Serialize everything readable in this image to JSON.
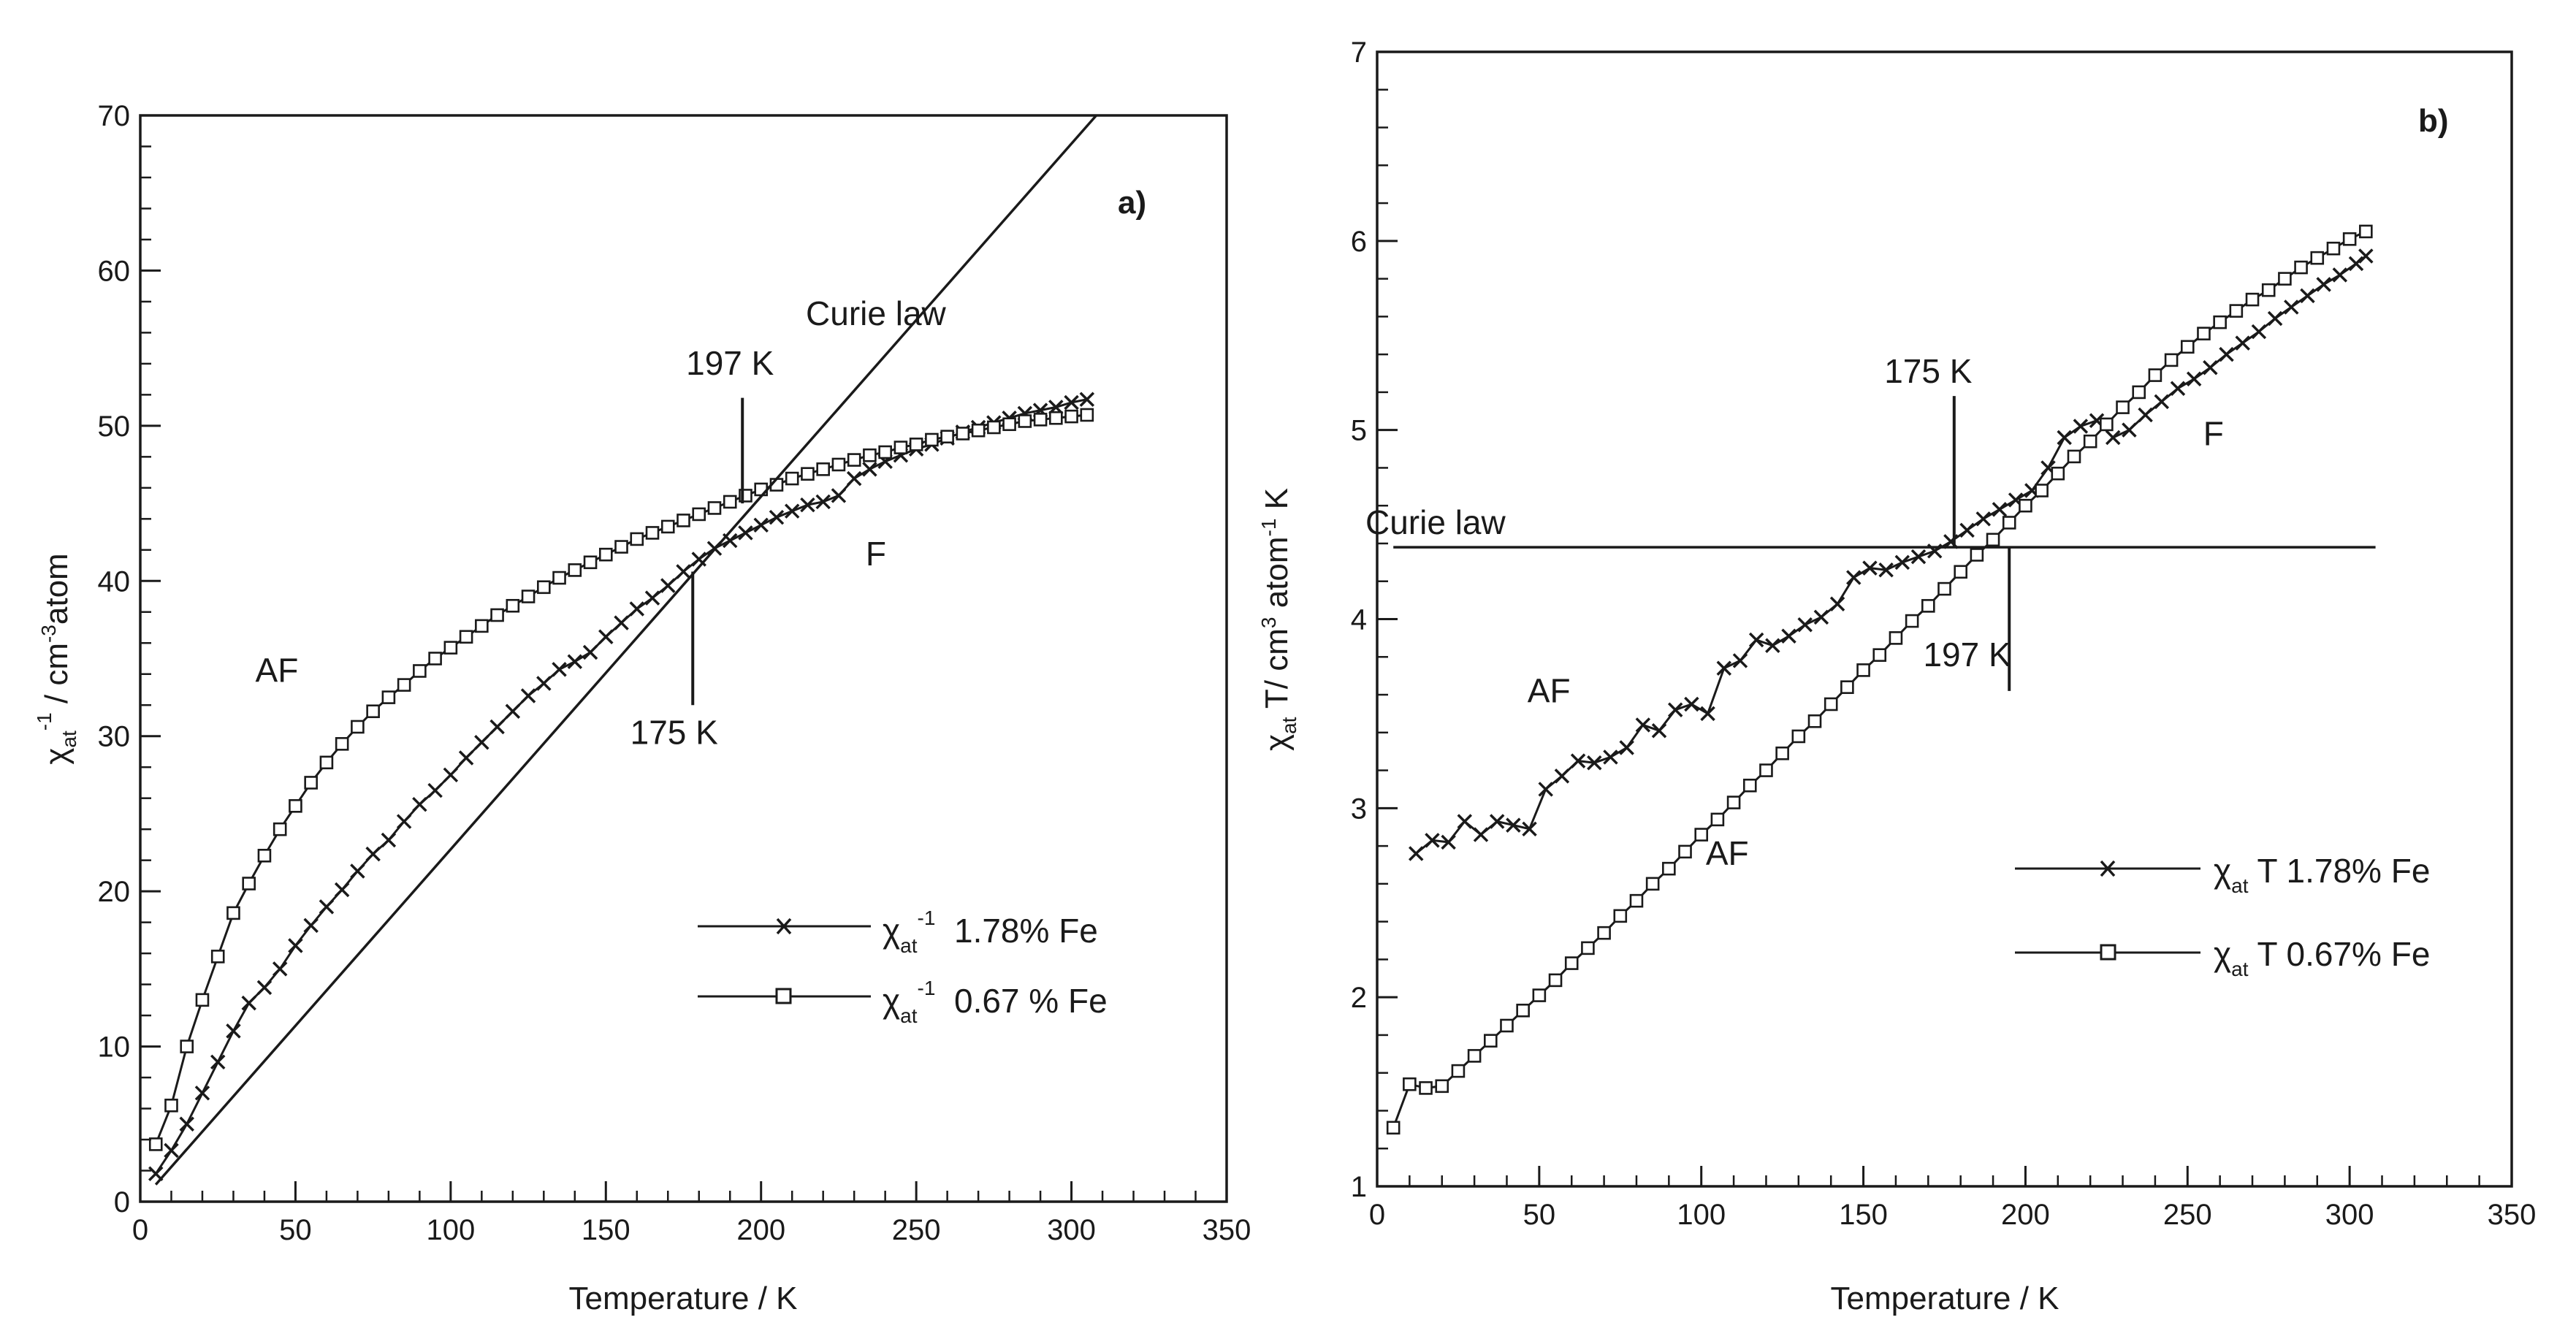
{
  "chart_data": [
    {
      "type": "line",
      "panel_label": "a)",
      "title": "",
      "xlabel": "Temperature / K",
      "ylabel": "χat-1 / cm-3atom",
      "ylabel_parts": {
        "chi": "χ",
        "sub": "at",
        "sup": "-1",
        "rest": " / cm",
        "sup2": "-3",
        "rest2": "atom"
      },
      "xlim": [
        0,
        350
      ],
      "ylim": [
        0,
        70
      ],
      "xticks": [
        0,
        50,
        100,
        150,
        200,
        250,
        300,
        350
      ],
      "yticks": [
        0,
        10,
        20,
        30,
        40,
        50,
        60,
        70
      ],
      "grid": false,
      "legend_position": "bottom-right",
      "series": [
        {
          "name": "χat-1 1.78% Fe",
          "legend_parts": {
            "chi": "χ",
            "sub": "at",
            "sup": "-1",
            "rest": "  1.78% Fe"
          },
          "marker": "x",
          "x": [
            5,
            10,
            15,
            20,
            25,
            30,
            35,
            40,
            45,
            50,
            55,
            60,
            65,
            70,
            75,
            80,
            85,
            90,
            95,
            100,
            105,
            110,
            115,
            120,
            125,
            130,
            135,
            140,
            145,
            150,
            155,
            160,
            165,
            170,
            175,
            180,
            185,
            190,
            195,
            200,
            205,
            210,
            215,
            220,
            225,
            230,
            235,
            240,
            245,
            250,
            255,
            260,
            265,
            270,
            275,
            280,
            285,
            290,
            295,
            300,
            305
          ],
          "y": [
            1.8,
            3.3,
            5.0,
            7.0,
            9.0,
            11.0,
            12.8,
            13.8,
            15.0,
            16.5,
            17.8,
            19.0,
            20.1,
            21.3,
            22.4,
            23.3,
            24.5,
            25.6,
            26.5,
            27.5,
            28.6,
            29.6,
            30.6,
            31.6,
            32.6,
            33.4,
            34.3,
            34.8,
            35.4,
            36.4,
            37.3,
            38.2,
            38.9,
            39.7,
            40.6,
            41.4,
            42.1,
            42.6,
            43.1,
            43.6,
            44.1,
            44.5,
            44.9,
            45.1,
            45.5,
            46.6,
            47.2,
            47.7,
            48.1,
            48.5,
            48.8,
            49.2,
            49.6,
            49.9,
            50.2,
            50.5,
            50.8,
            51.0,
            51.2,
            51.5,
            51.7
          ]
        },
        {
          "name": "χat-1 0.67 % Fe",
          "legend_parts": {
            "chi": "χ",
            "sub": "at",
            "sup": "-1",
            "rest": "  0.67 % Fe"
          },
          "marker": "square",
          "x": [
            5,
            10,
            15,
            20,
            25,
            30,
            35,
            40,
            45,
            50,
            55,
            60,
            65,
            70,
            75,
            80,
            85,
            90,
            95,
            100,
            105,
            110,
            115,
            120,
            125,
            130,
            135,
            140,
            145,
            150,
            155,
            160,
            165,
            170,
            175,
            180,
            185,
            190,
            195,
            200,
            205,
            210,
            215,
            220,
            225,
            230,
            235,
            240,
            245,
            250,
            255,
            260,
            265,
            270,
            275,
            280,
            285,
            290,
            295,
            300,
            305
          ],
          "y": [
            3.7,
            6.2,
            10.0,
            13.0,
            15.8,
            18.6,
            20.5,
            22.3,
            24.0,
            25.5,
            27.0,
            28.3,
            29.5,
            30.6,
            31.6,
            32.5,
            33.3,
            34.2,
            35.0,
            35.7,
            36.4,
            37.1,
            37.8,
            38.4,
            39.0,
            39.6,
            40.2,
            40.7,
            41.2,
            41.7,
            42.2,
            42.7,
            43.1,
            43.5,
            43.9,
            44.3,
            44.7,
            45.1,
            45.5,
            45.9,
            46.2,
            46.6,
            46.9,
            47.2,
            47.5,
            47.8,
            48.1,
            48.3,
            48.6,
            48.8,
            49.1,
            49.3,
            49.5,
            49.7,
            49.9,
            50.1,
            50.3,
            50.4,
            50.5,
            50.6,
            50.7
          ]
        },
        {
          "name": "Curie law",
          "marker": "none",
          "x": [
            5,
            308
          ],
          "y": [
            1.1,
            70
          ]
        }
      ],
      "annotations": [
        {
          "text": "a)",
          "x": 268,
          "y": 64.5,
          "kind": "panel"
        },
        {
          "text": "Curie law",
          "x": 237,
          "y": 56.5,
          "kind": "label"
        },
        {
          "text": "197 K",
          "x": 190,
          "y": 53.3,
          "kind": "label"
        },
        {
          "text": "175 K",
          "x": 172,
          "y": 29.5,
          "kind": "label"
        },
        {
          "text": "F",
          "x": 237,
          "y": 41.0,
          "kind": "label"
        },
        {
          "text": "AF",
          "x": 44,
          "y": 33.5,
          "kind": "label"
        }
      ],
      "marker_lines": [
        {
          "x": 194,
          "y1": 45.0,
          "y2": 51.8
        },
        {
          "x": 178,
          "y1": 32.0,
          "y2": 40.6
        }
      ]
    },
    {
      "type": "line",
      "panel_label": "b)",
      "title": "",
      "xlabel": "Temperature / K",
      "ylabel": "χat T/ cm3 atom-1 K",
      "ylabel_parts": {
        "chi": "χ",
        "sub": "at",
        "rest": " T/ cm",
        "sup": "3",
        "rest2": " atom",
        "sup2": "-1",
        "rest3": " K"
      },
      "xlim": [
        0,
        350
      ],
      "ylim": [
        1,
        7
      ],
      "xticks": [
        0,
        50,
        100,
        150,
        200,
        250,
        300,
        350
      ],
      "yticks": [
        1,
        2,
        3,
        4,
        5,
        6,
        7
      ],
      "grid": false,
      "legend_position": "middle-right",
      "series": [
        {
          "name": "χat T 1.78% Fe",
          "legend_parts": {
            "chi": "χ",
            "sub": "at",
            "rest": " T 1.78% Fe"
          },
          "marker": "x",
          "x": [
            12,
            17,
            22,
            27,
            32,
            37,
            42,
            47,
            52,
            57,
            62,
            67,
            72,
            77,
            82,
            87,
            92,
            97,
            102,
            107,
            112,
            117,
            122,
            127,
            132,
            137,
            142,
            147,
            152,
            157,
            162,
            167,
            172,
            177,
            182,
            187,
            192,
            197,
            202,
            207,
            212,
            217,
            222,
            227,
            232,
            237,
            242,
            247,
            252,
            257,
            262,
            267,
            272,
            277,
            282,
            287,
            292,
            297,
            302,
            305
          ],
          "y": [
            2.76,
            2.83,
            2.82,
            2.93,
            2.86,
            2.93,
            2.91,
            2.89,
            3.1,
            3.17,
            3.25,
            3.24,
            3.27,
            3.32,
            3.44,
            3.41,
            3.52,
            3.55,
            3.5,
            3.74,
            3.78,
            3.89,
            3.86,
            3.91,
            3.97,
            4.01,
            4.08,
            4.22,
            4.27,
            4.26,
            4.3,
            4.33,
            4.36,
            4.41,
            4.47,
            4.53,
            4.58,
            4.63,
            4.68,
            4.8,
            4.96,
            5.02,
            5.05,
            4.96,
            5.0,
            5.08,
            5.15,
            5.22,
            5.27,
            5.33,
            5.4,
            5.46,
            5.52,
            5.59,
            5.65,
            5.71,
            5.77,
            5.82,
            5.88,
            5.92
          ]
        },
        {
          "name": "χat T 0.67% Fe",
          "legend_parts": {
            "chi": "χ",
            "sub": "at",
            "rest": " T 0.67% Fe"
          },
          "marker": "square",
          "x": [
            5,
            10,
            15,
            20,
            25,
            30,
            35,
            40,
            45,
            50,
            55,
            60,
            65,
            70,
            75,
            80,
            85,
            90,
            95,
            100,
            105,
            110,
            115,
            120,
            125,
            130,
            135,
            140,
            145,
            150,
            155,
            160,
            165,
            170,
            175,
            180,
            185,
            190,
            195,
            200,
            205,
            210,
            215,
            220,
            225,
            230,
            235,
            240,
            245,
            250,
            255,
            260,
            265,
            270,
            275,
            280,
            285,
            290,
            295,
            300,
            305
          ],
          "y": [
            1.31,
            1.54,
            1.52,
            1.53,
            1.61,
            1.69,
            1.77,
            1.85,
            1.93,
            2.01,
            2.09,
            2.18,
            2.26,
            2.34,
            2.43,
            2.51,
            2.6,
            2.68,
            2.77,
            2.86,
            2.94,
            3.03,
            3.12,
            3.2,
            3.29,
            3.38,
            3.46,
            3.55,
            3.64,
            3.73,
            3.81,
            3.9,
            3.99,
            4.07,
            4.16,
            4.25,
            4.34,
            4.42,
            4.51,
            4.6,
            4.68,
            4.77,
            4.86,
            4.94,
            5.03,
            5.12,
            5.2,
            5.29,
            5.37,
            5.44,
            5.51,
            5.57,
            5.63,
            5.69,
            5.74,
            5.8,
            5.86,
            5.91,
            5.96,
            6.01,
            6.05
          ]
        },
        {
          "name": "Curie law",
          "marker": "none",
          "x": [
            5,
            308
          ],
          "y": [
            4.38,
            4.38
          ]
        }
      ],
      "annotations": [
        {
          "text": "b)",
          "x": 322,
          "y": 6.6,
          "kind": "panel"
        },
        {
          "text": "Curie law",
          "x": 18,
          "y": 4.45,
          "kind": "label"
        },
        {
          "text": "175 K",
          "x": 170,
          "y": 5.25,
          "kind": "label"
        },
        {
          "text": "197 K",
          "x": 182,
          "y": 3.75,
          "kind": "label"
        },
        {
          "text": "F",
          "x": 258,
          "y": 4.92,
          "kind": "label"
        },
        {
          "text": "AF",
          "x": 53,
          "y": 3.56,
          "kind": "label"
        },
        {
          "text": "AF",
          "x": 108,
          "y": 2.7,
          "kind": "label"
        }
      ],
      "marker_lines": [
        {
          "x": 178,
          "y1": 4.38,
          "y2": 5.18
        },
        {
          "x": 195,
          "y1": 3.62,
          "y2": 4.38
        }
      ]
    }
  ]
}
